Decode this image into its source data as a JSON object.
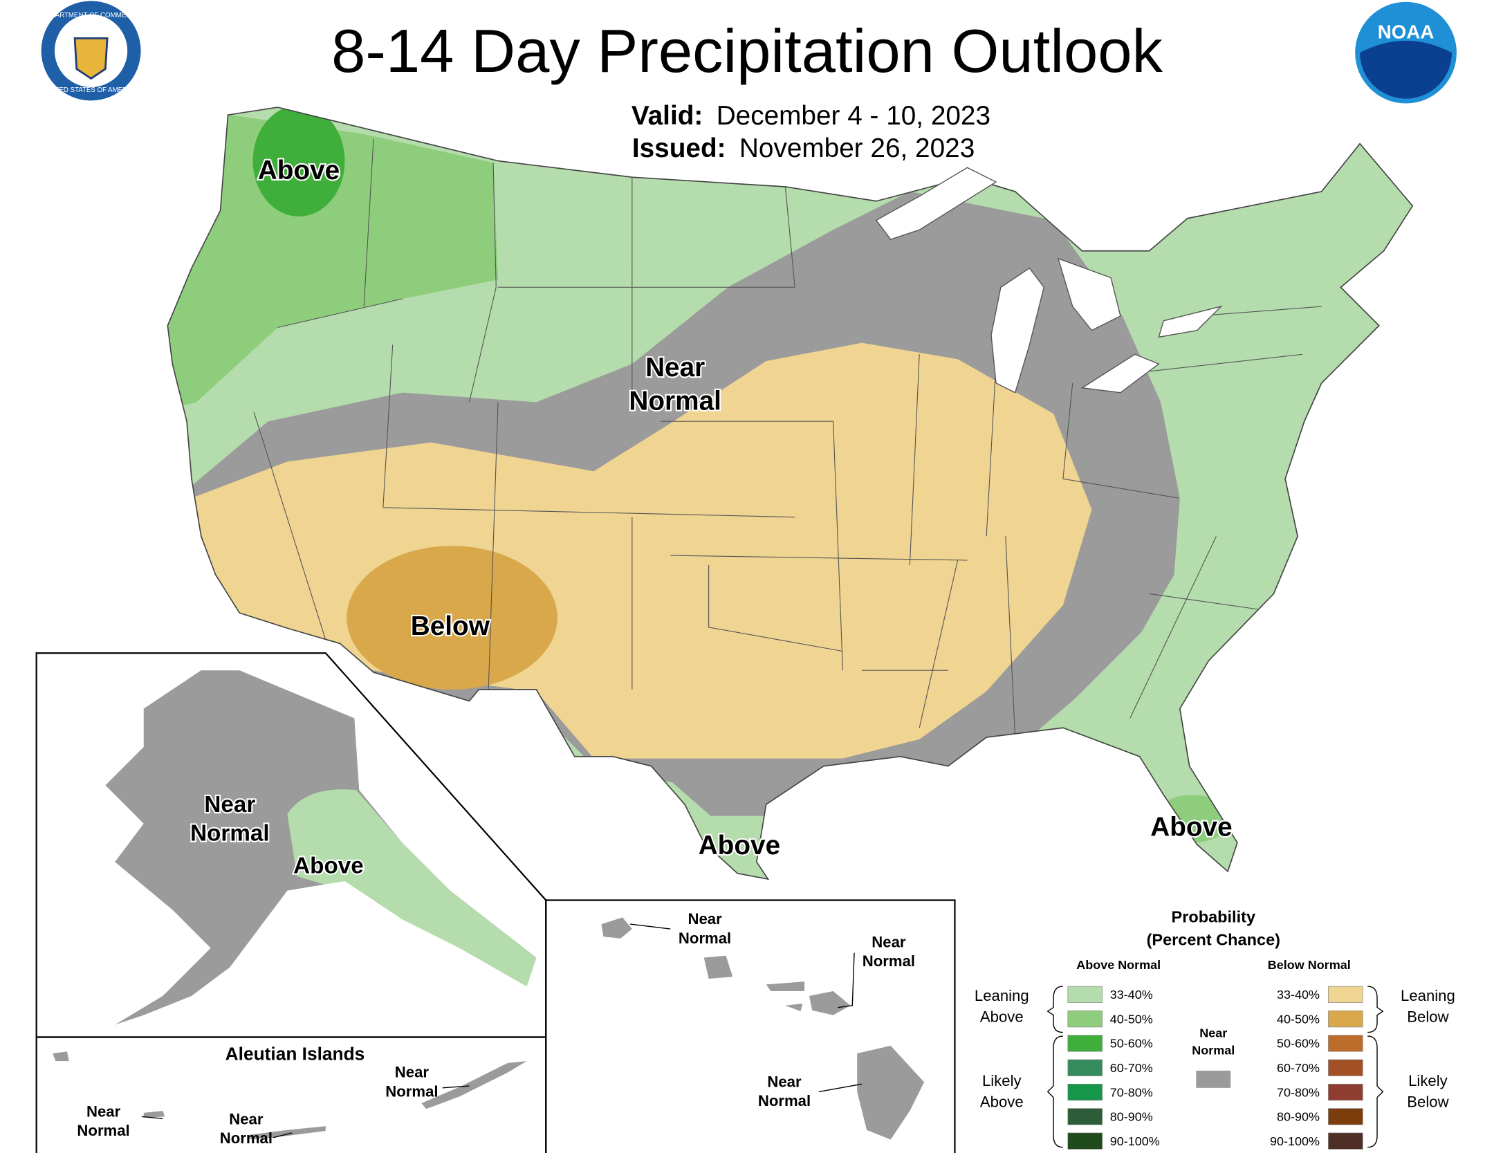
{
  "header": {
    "title": "8-14 Day Precipitation Outlook",
    "valid_label": "Valid:",
    "valid": "December 4 - 10, 2023",
    "issued_label": "Issued:",
    "issued": "November 26, 2023"
  },
  "logos": {
    "commerce_top": "DEPARTMENT OF COMMERCE",
    "commerce_bottom": "UNITED STATES OF AMERICA",
    "noaa": "NOAA"
  },
  "map_labels": {
    "above_nw": "Above",
    "near_normal_center": [
      "Near",
      "Normal"
    ],
    "below_sw": "Below",
    "above_texas": "Above",
    "above_florida": "Above"
  },
  "alaska": {
    "near_normal": [
      "Near",
      "Normal"
    ],
    "above": "Above"
  },
  "aleutian": {
    "title": "Aleutian Islands",
    "near_normal_east": [
      "Near",
      "Normal"
    ],
    "near_normal_west": [
      "Near",
      "Normal"
    ],
    "near_normal_mid": [
      "Near",
      "Normal"
    ]
  },
  "hawaii": {
    "near_normal_kauai": [
      "Near",
      "Normal"
    ],
    "near_normal_maui": [
      "Near",
      "Normal"
    ],
    "near_normal_big": [
      "Near",
      "Normal"
    ]
  },
  "legend": {
    "title": "Probability",
    "subtitle": "(Percent Chance)",
    "above_header": "Above Normal",
    "below_header": "Below Normal",
    "leaning_above": [
      "Leaning",
      "Above"
    ],
    "likely_above": [
      "Likely",
      "Above"
    ],
    "leaning_below": [
      "Leaning",
      "Below"
    ],
    "likely_below": [
      "Likely",
      "Below"
    ],
    "near_normal": [
      "Near",
      "Normal"
    ],
    "near_color": "#9b9b9b",
    "above": [
      {
        "range": "33-40%",
        "color": "#b4dcac"
      },
      {
        "range": "40-50%",
        "color": "#8ecd7c"
      },
      {
        "range": "50-60%",
        "color": "#3fae3a"
      },
      {
        "range": "60-70%",
        "color": "#368b5c"
      },
      {
        "range": "70-80%",
        "color": "#16964a"
      },
      {
        "range": "80-90%",
        "color": "#2c5d38"
      },
      {
        "range": "90-100%",
        "color": "#1f4a1b"
      }
    ],
    "below": [
      {
        "range": "33-40%",
        "color": "#f0d492"
      },
      {
        "range": "40-50%",
        "color": "#d9a84b"
      },
      {
        "range": "50-60%",
        "color": "#bd6d2b"
      },
      {
        "range": "60-70%",
        "color": "#a35027"
      },
      {
        "range": "70-80%",
        "color": "#8f3d31"
      },
      {
        "range": "80-90%",
        "color": "#7a3d0b"
      },
      {
        "range": "90-100%",
        "color": "#4f2e25"
      }
    ]
  }
}
